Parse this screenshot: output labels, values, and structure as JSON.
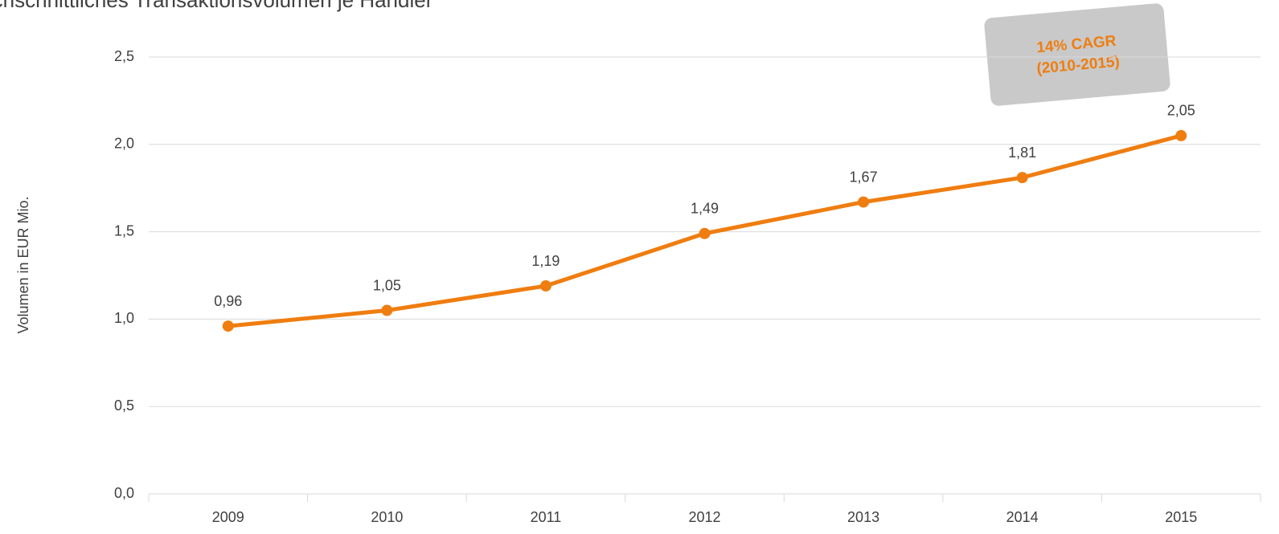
{
  "chart_data": {
    "type": "line",
    "title": "rchschnittliches Transaktionsvolumen je Händler",
    "y_axis_label": "Volumen in EUR Mio.",
    "annotation": [
      "14% CAGR",
      "(2010-2015)"
    ],
    "categories": [
      "2009",
      "2010",
      "2011",
      "2012",
      "2013",
      "2014",
      "2015"
    ],
    "series": [
      {
        "name": "Volumen",
        "color": "#ef7d10",
        "values": [
          0.96,
          1.05,
          1.19,
          1.49,
          1.67,
          1.81,
          2.05
        ],
        "value_labels": [
          "0,96",
          "1,05",
          "1,19",
          "1,49",
          "1,67",
          "1,81",
          "2,05"
        ]
      }
    ],
    "ylim": [
      0,
      2.5
    ],
    "yticks": [
      {
        "value": 0,
        "label": "0,0"
      },
      {
        "value": 0.5,
        "label": "0,5"
      },
      {
        "value": 1,
        "label": "1,0"
      },
      {
        "value": 1.5,
        "label": "1,5"
      },
      {
        "value": 2,
        "label": "2,0"
      },
      {
        "value": 2.5,
        "label": "2,5"
      }
    ],
    "grid": true
  }
}
